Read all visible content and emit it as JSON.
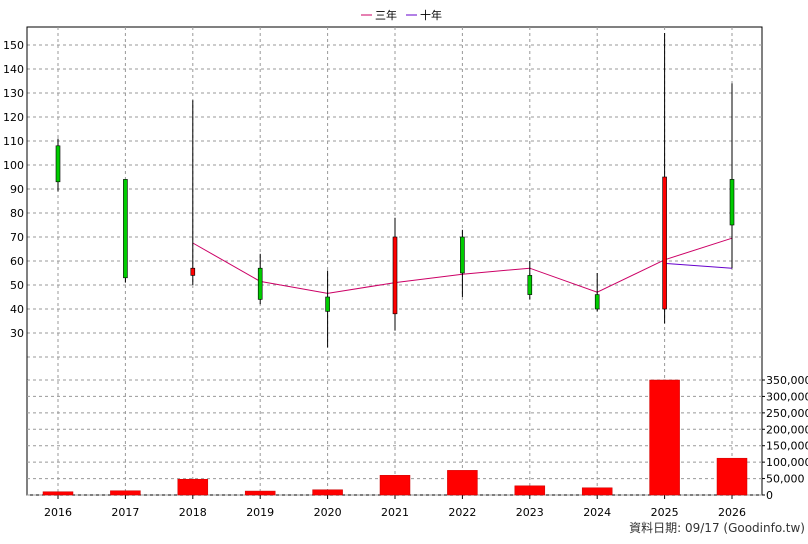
{
  "legend": {
    "series": [
      {
        "name": "三年",
        "color": "#cc0066"
      },
      {
        "name": "十年",
        "color": "#6600cc"
      }
    ]
  },
  "footer": {
    "source": "資料日期: 09/17  (Goodinfo.tw)"
  },
  "chart_data": {
    "type": "candlestick+line+bar",
    "categories": [
      "2016",
      "2017",
      "2018",
      "2019",
      "2020",
      "2021",
      "2022",
      "2023",
      "2024",
      "2025",
      "2026"
    ],
    "price_panel": {
      "y_ticks": [
        30,
        40,
        50,
        60,
        70,
        80,
        90,
        100,
        110,
        120,
        130,
        140,
        150
      ],
      "ylim": [
        21,
        156
      ],
      "grid": true,
      "candles": [
        {
          "year": "2016",
          "open": 93,
          "close": 108,
          "high": 111,
          "low": 89,
          "color": "green"
        },
        {
          "year": "2017",
          "open": 53,
          "close": 94,
          "high": 94,
          "low": 51,
          "color": "green"
        },
        {
          "year": "2018",
          "open": 57,
          "close": 54,
          "high": 127,
          "low": 50,
          "color": "red"
        },
        {
          "year": "2019",
          "open": 44,
          "close": 57,
          "high": 63,
          "low": 42,
          "color": "green"
        },
        {
          "year": "2020",
          "open": 39,
          "close": 45,
          "high": 56,
          "low": 24,
          "color": "green"
        },
        {
          "year": "2021",
          "open": 70,
          "close": 38,
          "high": 78,
          "low": 31,
          "color": "red"
        },
        {
          "year": "2022",
          "open": 55,
          "close": 70,
          "high": 73,
          "low": 45,
          "color": "green"
        },
        {
          "year": "2023",
          "open": 46,
          "close": 54,
          "high": 60,
          "low": 44,
          "color": "green"
        },
        {
          "year": "2024",
          "open": 40,
          "close": 46,
          "high": 55,
          "low": 39,
          "color": "green"
        },
        {
          "year": "2025",
          "open": 95,
          "close": 40,
          "high": 155,
          "low": 34,
          "color": "red"
        },
        {
          "year": "2026",
          "open": 75,
          "close": 94,
          "high": 134,
          "low": 57,
          "color": "green"
        }
      ],
      "series": [
        {
          "name": "三年",
          "color": "#cc0066",
          "values": [
            null,
            null,
            67.5,
            51.5,
            46.5,
            51,
            54.5,
            57,
            47,
            60.5,
            69.5
          ]
        },
        {
          "name": "十年",
          "color": "#6600cc",
          "values": [
            null,
            null,
            null,
            null,
            null,
            null,
            null,
            null,
            null,
            59,
            57
          ]
        }
      ]
    },
    "volume_panel": {
      "y_ticks": [
        0,
        50000,
        100000,
        150000,
        200000,
        250000,
        300000,
        350000
      ],
      "y_tick_labels": [
        "0",
        "50,000",
        "100,000",
        "150,000",
        "200,000",
        "250,000",
        "300,000",
        "350,000"
      ],
      "ylim": [
        0,
        350000
      ],
      "bar_color": "#ff0000",
      "values": [
        10000,
        13000,
        48000,
        12000,
        16000,
        60000,
        75000,
        28000,
        22000,
        350000,
        112000
      ]
    }
  }
}
